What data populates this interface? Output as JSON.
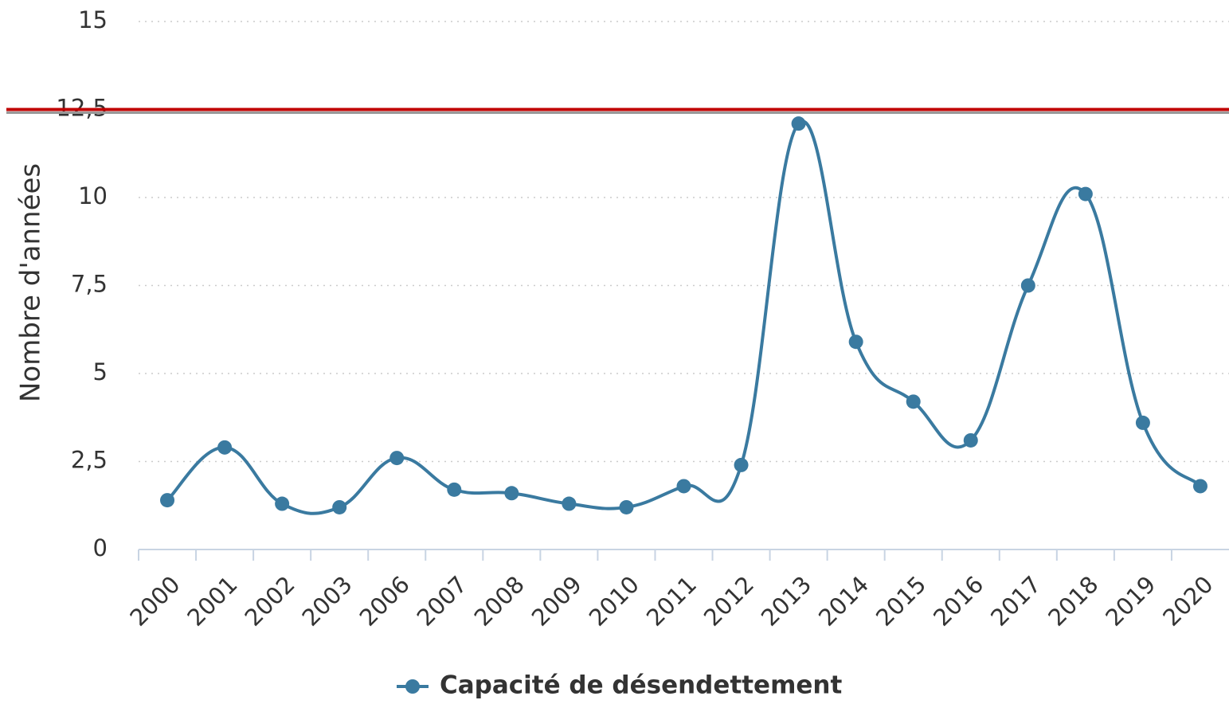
{
  "chart_data": {
    "type": "line",
    "y_label": "Nombre d'années",
    "categories": [
      "2000",
      "2001",
      "2002",
      "2003",
      "2006",
      "2007",
      "2008",
      "2009",
      "2010",
      "2011",
      "2012",
      "2013",
      "2014",
      "2015",
      "2016",
      "2017",
      "2018",
      "2019",
      "2020"
    ],
    "series": [
      {
        "name": "Capacité de désendettement",
        "color": "#3a7aa0",
        "values": [
          1.4,
          2.9,
          1.3,
          1.2,
          2.6,
          1.7,
          1.6,
          1.3,
          1.2,
          1.8,
          2.4,
          12.1,
          5.9,
          4.2,
          3.1,
          7.5,
          10.1,
          3.6,
          1.8
        ]
      }
    ],
    "ylim": [
      0,
      15
    ],
    "yticks": [
      0,
      {
        "value": 2.5,
        "label": "2,5"
      },
      5,
      {
        "value": 7.5,
        "label": "7,5"
      },
      10,
      {
        "value": 12.5,
        "label": "12,5"
      },
      15
    ],
    "grid": true,
    "threshold": {
      "value": 12.5,
      "color": "#c00000"
    },
    "legend": "bottom"
  }
}
